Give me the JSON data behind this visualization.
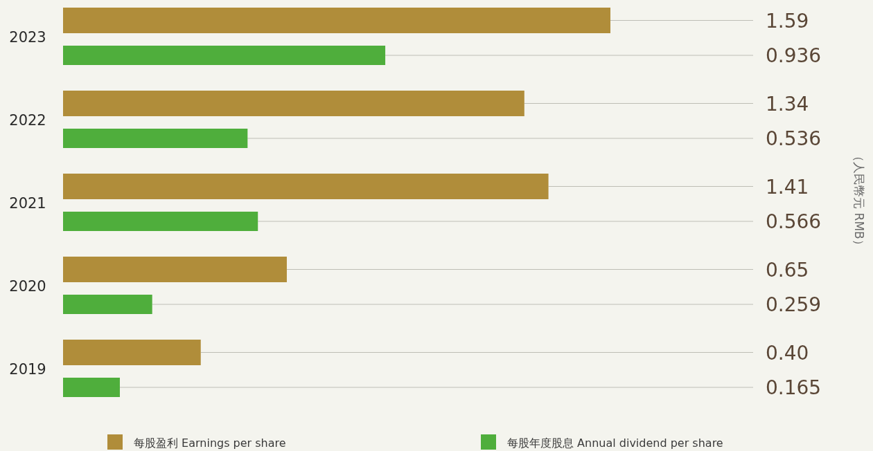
{
  "chart_data": {
    "type": "bar",
    "orientation": "horizontal",
    "categories": [
      "2023",
      "2022",
      "2021",
      "2020",
      "2019"
    ],
    "series": [
      {
        "name": "每股盈利  Earnings per share",
        "color": "#b08d3a",
        "values": [
          1.59,
          1.34,
          1.41,
          0.65,
          0.4
        ],
        "value_labels": [
          "1.59",
          "1.34",
          "1.41",
          "0.65",
          "0.40"
        ]
      },
      {
        "name": "每股年度股息  Annual dividend per share",
        "color": "#4fae3c",
        "values": [
          0.936,
          0.536,
          0.566,
          0.259,
          0.165
        ],
        "value_labels": [
          "0.936",
          "0.536",
          "0.566",
          "0.259",
          "0.165"
        ]
      }
    ],
    "legend": "bottom",
    "annotations": [
      "（人民幣元 RMB）"
    ]
  }
}
